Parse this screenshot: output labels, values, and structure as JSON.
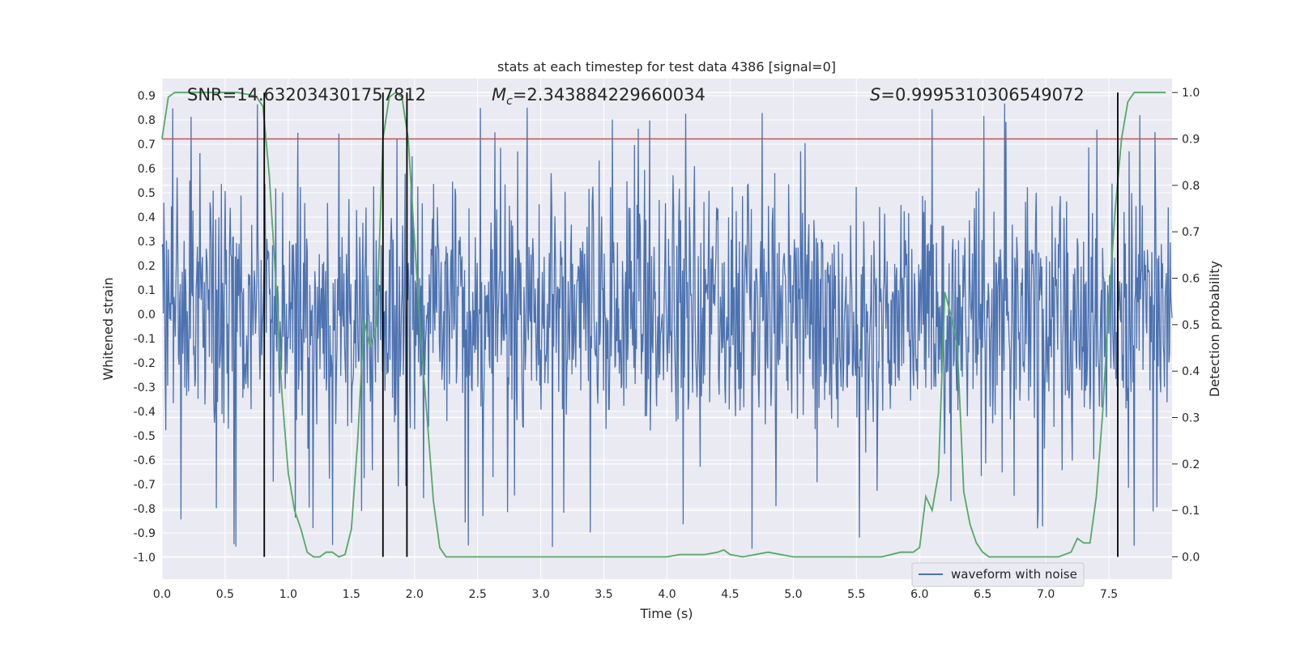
{
  "chart_data": {
    "type": "line",
    "title": "stats at each timestep for test data 4386 [signal=0]",
    "xlabel": "Time (s)",
    "ylabel": "Whitened strain",
    "y2label": "Detection probability",
    "xlim": [
      0.0,
      8.0
    ],
    "ylim": [
      -1.09,
      0.97
    ],
    "y2lim": [
      -0.048,
      1.03
    ],
    "xticks": [
      "0.0",
      "0.5",
      "1.0",
      "1.5",
      "2.0",
      "2.5",
      "3.0",
      "3.5",
      "4.0",
      "4.5",
      "5.0",
      "5.5",
      "6.0",
      "6.5",
      "7.0",
      "7.5"
    ],
    "yticks": [
      "0.9",
      "0.8",
      "0.7",
      "0.6",
      "0.5",
      "0.4",
      "0.3",
      "0.2",
      "0.1",
      "0.0",
      "-0.1",
      "-0.2",
      "-0.3",
      "-0.4",
      "-0.5",
      "-0.6",
      "-0.7",
      "-0.8",
      "-0.9",
      "-1.0"
    ],
    "y2ticks": [
      "1.0",
      "0.9",
      "0.8",
      "0.7",
      "0.6",
      "0.5",
      "0.4",
      "0.3",
      "0.2",
      "0.1",
      "0.0"
    ],
    "grid": true,
    "legend": {
      "position": "lower-right",
      "entries": [
        "waveform with noise"
      ]
    },
    "annotations": {
      "snr": "SNR=14.632034301757812",
      "mc_symbol": "M",
      "mc_sub": "c",
      "mc_value": "=2.343884229660034",
      "s_symbol": "S",
      "s_value": "=0.9995310306549072"
    },
    "threshold": {
      "axis": "y2",
      "value": 0.9
    },
    "vlines": [
      0.81,
      1.75,
      1.94,
      7.57
    ],
    "series": [
      {
        "name": "waveform with noise",
        "axis": "y",
        "kind": "noise",
        "typical_range": [
          -0.4,
          0.45
        ],
        "peak_range": [
          -1.0,
          0.87
        ],
        "duration": 8.0
      },
      {
        "axis": "y2",
        "kind": "line",
        "x": [
          0.0,
          0.05,
          0.1,
          0.2,
          0.3,
          0.4,
          0.5,
          0.6,
          0.7,
          0.75,
          0.8,
          0.85,
          0.9,
          0.95,
          1.0,
          1.05,
          1.1,
          1.15,
          1.2,
          1.25,
          1.3,
          1.35,
          1.4,
          1.45,
          1.5,
          1.55,
          1.6,
          1.65,
          1.7,
          1.75,
          1.8,
          1.85,
          1.9,
          1.95,
          2.0,
          2.05,
          2.1,
          2.15,
          2.2,
          2.25,
          2.3,
          2.5,
          3.0,
          3.5,
          3.8,
          4.0,
          4.1,
          4.3,
          4.4,
          4.45,
          4.5,
          4.6,
          4.8,
          5.0,
          5.2,
          5.4,
          5.55,
          5.7,
          5.85,
          5.95,
          6.0,
          6.05,
          6.1,
          6.15,
          6.2,
          6.25,
          6.3,
          6.35,
          6.4,
          6.45,
          6.5,
          6.55,
          6.6,
          6.7,
          6.8,
          7.0,
          7.1,
          7.2,
          7.25,
          7.3,
          7.35,
          7.4,
          7.45,
          7.5,
          7.55,
          7.6,
          7.65,
          7.7,
          7.8,
          7.9,
          7.95
        ],
        "values": [
          0.9,
          0.99,
          1.0,
          1.0,
          1.0,
          1.0,
          1.0,
          1.0,
          0.995,
          0.99,
          0.97,
          0.82,
          0.6,
          0.35,
          0.18,
          0.1,
          0.06,
          0.01,
          0.0,
          0.0,
          0.01,
          0.01,
          0.0,
          0.005,
          0.06,
          0.25,
          0.51,
          0.45,
          0.5,
          0.9,
          0.99,
          1.0,
          0.99,
          0.9,
          0.68,
          0.47,
          0.3,
          0.12,
          0.02,
          0.0,
          0.0,
          0.0,
          0.0,
          0.0,
          0.0,
          0.0,
          0.005,
          0.005,
          0.01,
          0.015,
          0.005,
          0.0,
          0.01,
          0.0,
          0.0,
          0.0,
          0.0,
          0.0,
          0.01,
          0.01,
          0.02,
          0.13,
          0.1,
          0.18,
          0.57,
          0.52,
          0.45,
          0.14,
          0.07,
          0.03,
          0.01,
          0.0,
          0.0,
          0.0,
          0.0,
          0.0,
          0.0,
          0.01,
          0.04,
          0.03,
          0.03,
          0.13,
          0.31,
          0.55,
          0.75,
          0.9,
          0.98,
          1.0,
          1.0,
          1.0,
          1.0
        ]
      }
    ],
    "colors": {
      "waveform": "#4c72b0",
      "probability": "#55a868",
      "threshold": "#c44e52",
      "vline": "#000000",
      "plot_bg": "#eaeaf2",
      "grid": "#ffffff"
    }
  }
}
